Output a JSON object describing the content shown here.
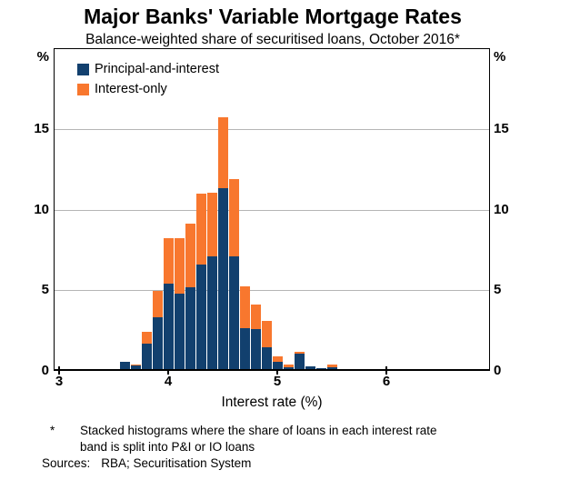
{
  "header": {
    "title": "Major Banks' Variable Mortgage Rates",
    "subtitle": "Balance-weighted share of securitised loans, October 2016*"
  },
  "chart_data": {
    "type": "bar",
    "stacked": true,
    "title": "Major Banks' Variable Mortgage Rates",
    "subtitle": "Balance-weighted share of securitised loans, October 2016*",
    "xlabel": "Interest rate (%)",
    "ylabel": "%",
    "y_unit_left": "%",
    "y_unit_right": "%",
    "xlim": [
      2.95,
      6.95
    ],
    "ylim": [
      0,
      20
    ],
    "x_ticks": [
      3,
      4,
      5,
      6
    ],
    "y_ticks": [
      0,
      5,
      10,
      15
    ],
    "grid": "horizontal gridlines at 5, 10, 15",
    "legend_position": "top-left-inside",
    "bin_width": 0.1,
    "categories": [
      3.6,
      3.7,
      3.8,
      3.9,
      4.0,
      4.1,
      4.2,
      4.3,
      4.4,
      4.5,
      4.6,
      4.7,
      4.8,
      4.9,
      5.0,
      5.1,
      5.2,
      5.3,
      5.4,
      5.5,
      5.6
    ],
    "series": [
      {
        "name": "Principal-and-interest",
        "color": "#12406e",
        "values": [
          0.55,
          0.35,
          1.7,
          3.3,
          5.4,
          4.8,
          5.2,
          6.6,
          7.1,
          11.3,
          7.1,
          2.65,
          2.6,
          1.45,
          0.55,
          0.25,
          1.05,
          0.3,
          0.15,
          0.25,
          0
        ]
      },
      {
        "name": "Interest-only",
        "color": "#f8772e",
        "values": [
          0,
          0.05,
          0.75,
          1.65,
          2.8,
          3.4,
          3.9,
          4.4,
          3.95,
          4.4,
          4.8,
          2.6,
          1.5,
          1.65,
          0.35,
          0.15,
          0.15,
          0,
          0,
          0.15,
          0.1
        ]
      }
    ],
    "totals": [
      0.55,
      0.4,
      2.45,
      4.95,
      8.2,
      8.2,
      9.1,
      11.0,
      11.05,
      15.7,
      11.9,
      5.25,
      4.1,
      3.1,
      0.9,
      0.4,
      1.2,
      0.3,
      0.15,
      0.4,
      0.1
    ]
  },
  "footnote": {
    "marker": "*",
    "lines": [
      "Stacked histograms where the share of loans in each interest rate",
      "band is split into P&I or IO loans"
    ]
  },
  "sources": {
    "label": "Sources:",
    "value": "RBA; Securitisation System"
  },
  "colors": {
    "principal_and_interest": "#12406e",
    "interest_only": "#f8772e",
    "gridline": "#b5b5b5",
    "frame": "#000000"
  }
}
